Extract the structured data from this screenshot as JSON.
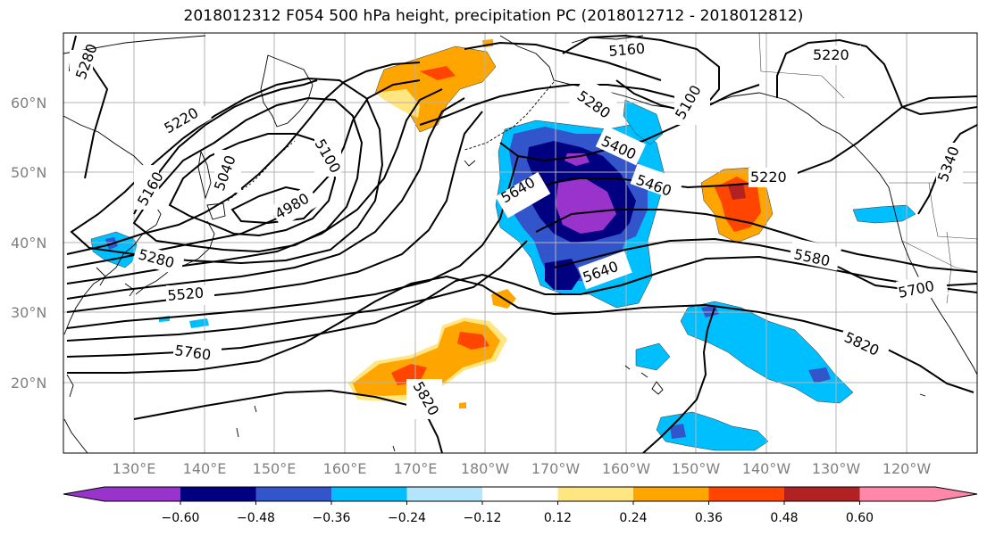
{
  "title": "2018012312 F054 500 hPa height, precipitation PC (2018012712 - 2018012812)",
  "map": {
    "projection": "plate carree",
    "lon_range": [
      "120°E",
      "110°W"
    ],
    "lat_range": [
      "10°N",
      "70°N"
    ],
    "lat_labels": [
      "20°N",
      "30°N",
      "40°N",
      "50°N",
      "60°N"
    ],
    "lon_labels": [
      "130°E",
      "140°E",
      "150°E",
      "160°E",
      "170°E",
      "180°W",
      "170°W",
      "160°W",
      "150°W",
      "140°W",
      "130°W",
      "120°W"
    ],
    "grid": true,
    "contour_labels": [
      "5280",
      "5220",
      "5160",
      "5040",
      "5100",
      "4980",
      "5280",
      "5520",
      "5760",
      "5820",
      "5160",
      "5220",
      "5640",
      "5400",
      "5460",
      "5580",
      "5220",
      "5700",
      "5820",
      "5340",
      "5640",
      "5280",
      "5100"
    ]
  },
  "colorbar": {
    "tick_labels": [
      "−0.60",
      "−0.48",
      "−0.36",
      "−0.24",
      "−0.12",
      "0.12",
      "0.24",
      "0.36",
      "0.48",
      "0.60"
    ],
    "colors": [
      "#9933cc",
      "#000080",
      "#3355cc",
      "#00bfff",
      "#b3e5fc",
      "#ffffff",
      "#ffe680",
      "#ffa500",
      "#ff4500",
      "#b22222",
      "#ff88aa"
    ]
  }
}
